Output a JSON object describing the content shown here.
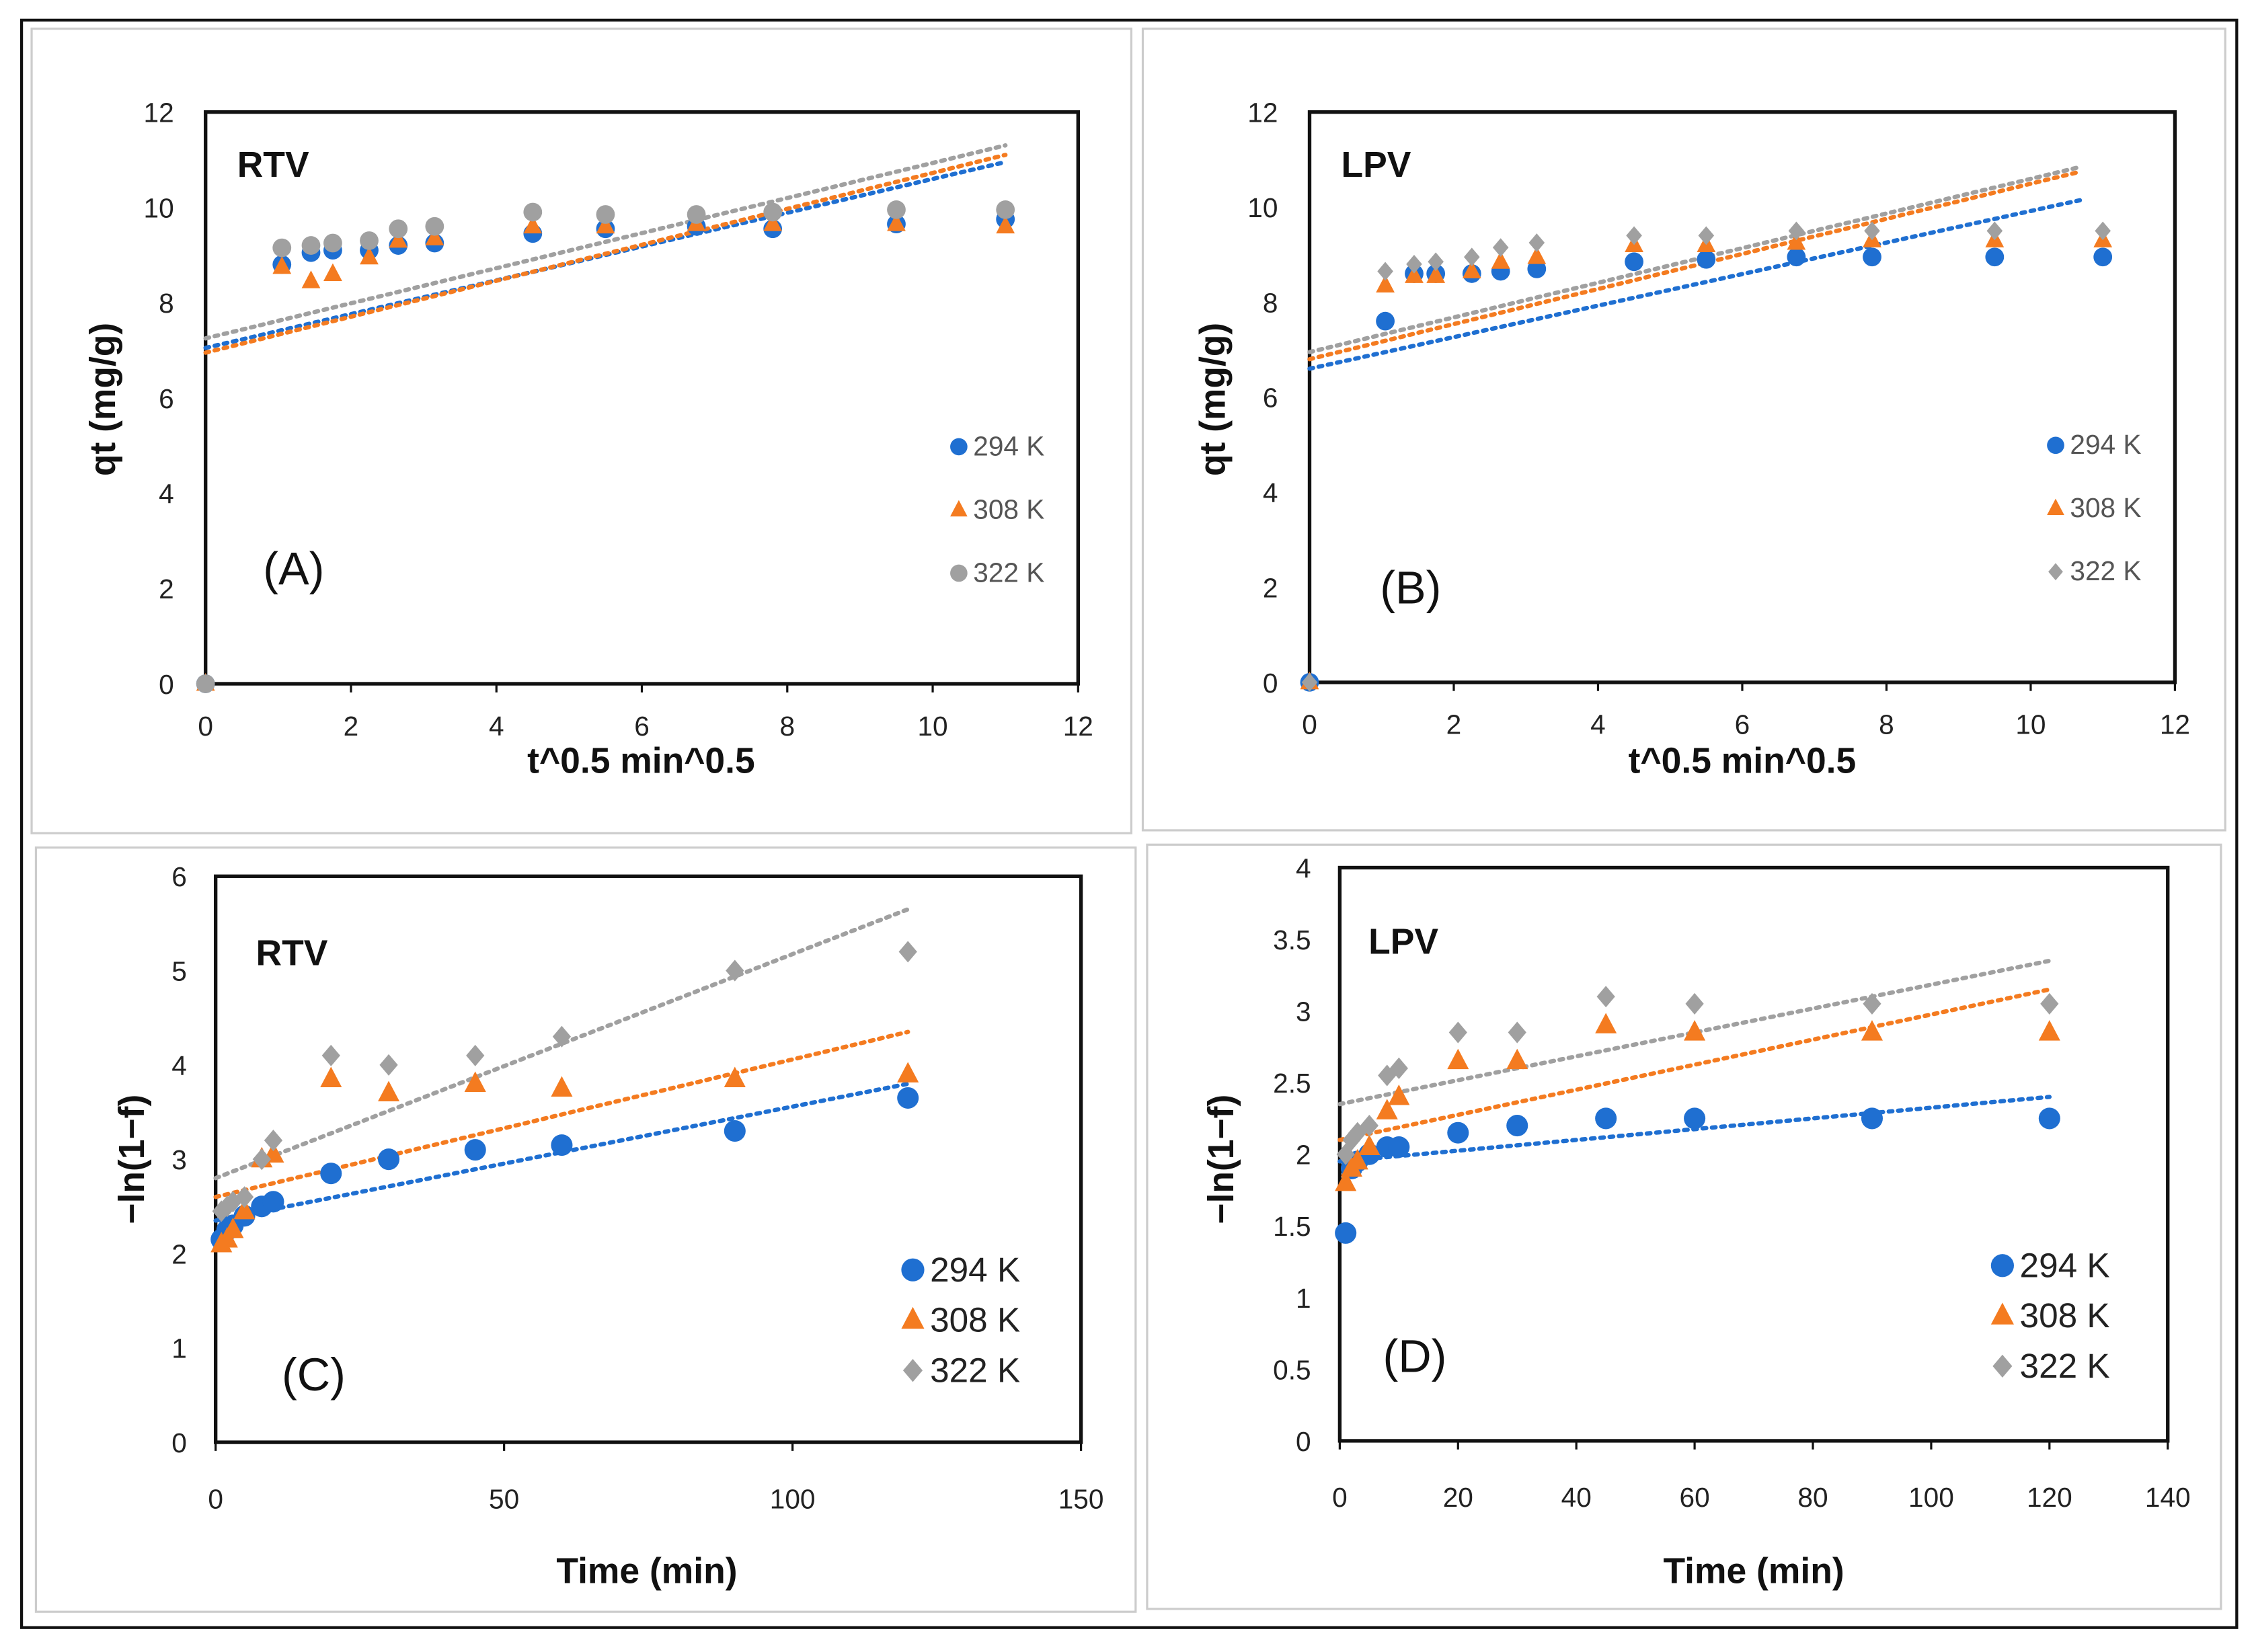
{
  "colors": {
    "294 K": "#1f6fd1",
    "308 K": "#f47b20",
    "322 K": "#a0a0a0"
  },
  "chart_data": [
    {
      "type": "scatter",
      "panel": "(A)",
      "tag": "RTV",
      "xlabel": "t^0.5 min^0.5",
      "ylabel": "qt (mg/g)",
      "xlim": [
        0,
        12
      ],
      "ylim": [
        0,
        12
      ],
      "xticks": [
        0,
        2,
        4,
        6,
        8,
        10,
        12
      ],
      "yticks": [
        0,
        2,
        4,
        6,
        8,
        10,
        12
      ],
      "legend": "right",
      "x": [
        0,
        1.05,
        1.45,
        1.75,
        2.25,
        2.65,
        3.15,
        4.5,
        5.5,
        6.75,
        7.8,
        9.5,
        11
      ],
      "series": [
        {
          "name": "294 K",
          "marker": "circle",
          "values": [
            0,
            8.8,
            9.05,
            9.1,
            9.1,
            9.2,
            9.25,
            9.45,
            9.55,
            9.6,
            9.55,
            9.65,
            9.75
          ],
          "trend": [
            [
              0,
              7.05
            ],
            [
              11,
              10.95
            ]
          ]
        },
        {
          "name": "308 K",
          "marker": "triangle",
          "values": [
            0,
            8.75,
            8.45,
            8.6,
            8.95,
            9.3,
            9.35,
            9.6,
            9.6,
            9.65,
            9.65,
            9.65,
            9.6
          ],
          "trend": [
            [
              0,
              6.95
            ],
            [
              11,
              11.1
            ]
          ]
        },
        {
          "name": "322 K",
          "marker": "circle",
          "values": [
            0,
            9.15,
            9.2,
            9.25,
            9.3,
            9.55,
            9.6,
            9.9,
            9.85,
            9.85,
            9.9,
            9.95,
            9.95
          ],
          "trend": [
            [
              0,
              7.25
            ],
            [
              11,
              11.3
            ]
          ]
        }
      ]
    },
    {
      "type": "scatter",
      "panel": "(B)",
      "tag": "LPV",
      "xlabel": "t^0.5 min^0.5",
      "ylabel": "qt (mg/g)",
      "xlim": [
        0,
        12
      ],
      "ylim": [
        0,
        12
      ],
      "xticks": [
        0,
        2,
        4,
        6,
        8,
        10,
        12
      ],
      "yticks": [
        0,
        2,
        4,
        6,
        8,
        10,
        12
      ],
      "legend": "right",
      "x": [
        0,
        1.05,
        1.45,
        1.75,
        2.25,
        2.65,
        3.15,
        4.5,
        5.5,
        6.75,
        7.8,
        9.5,
        11
      ],
      "series": [
        {
          "name": "294 K",
          "marker": "circle",
          "values": [
            0,
            7.6,
            8.6,
            8.6,
            8.6,
            8.65,
            8.7,
            8.85,
            8.9,
            8.95,
            8.95,
            8.95,
            8.95
          ],
          "trend": [
            [
              0,
              6.6
            ],
            [
              10.7,
              10.15
            ]
          ]
        },
        {
          "name": "308 K",
          "marker": "triangle",
          "values": [
            0,
            8.35,
            8.55,
            8.55,
            8.65,
            8.85,
            8.95,
            9.2,
            9.2,
            9.25,
            9.3,
            9.3,
            9.3
          ],
          "trend": [
            [
              0,
              6.8
            ],
            [
              10.7,
              10.75
            ]
          ]
        },
        {
          "name": "322 K",
          "marker": "diamond",
          "values": [
            0,
            8.65,
            8.8,
            8.85,
            8.95,
            9.15,
            9.25,
            9.4,
            9.4,
            9.5,
            9.5,
            9.5,
            9.5
          ],
          "trend": [
            [
              0,
              6.95
            ],
            [
              10.7,
              10.85
            ]
          ]
        }
      ]
    },
    {
      "type": "scatter",
      "panel": "(C)",
      "tag": "RTV",
      "xlabel": "Time (min)",
      "ylabel": "−ln(1−f)",
      "xlim": [
        0,
        150
      ],
      "ylim": [
        0,
        6
      ],
      "xticks": [
        0,
        50,
        100,
        150
      ],
      "yticks": [
        0,
        1,
        2,
        3,
        4,
        5,
        6
      ],
      "legend": "bottom-right",
      "x": [
        1,
        2,
        3,
        5,
        8,
        10,
        20,
        30,
        45,
        60,
        90,
        120
      ],
      "series": [
        {
          "name": "294 K",
          "marker": "circle",
          "values": [
            2.15,
            2.25,
            2.3,
            2.4,
            2.5,
            2.55,
            2.85,
            3.0,
            3.1,
            3.15,
            3.3,
            3.65
          ],
          "trend": [
            [
              0,
              2.35
            ],
            [
              120,
              3.8
            ]
          ]
        },
        {
          "name": "308 K",
          "marker": "triangle",
          "values": [
            2.1,
            2.15,
            2.25,
            2.45,
            3.0,
            3.05,
            3.85,
            3.7,
            3.8,
            3.75,
            3.85,
            3.9
          ],
          "trend": [
            [
              0,
              2.6
            ],
            [
              120,
              4.35
            ]
          ]
        },
        {
          "name": "322 K",
          "marker": "diamond",
          "values": [
            2.45,
            2.5,
            2.55,
            2.6,
            3.0,
            3.2,
            4.1,
            4.0,
            4.1,
            4.3,
            5.0,
            5.2
          ],
          "trend": [
            [
              0,
              2.8
            ],
            [
              120,
              5.65
            ]
          ]
        }
      ]
    },
    {
      "type": "scatter",
      "panel": "(D)",
      "tag": "LPV",
      "xlabel": "Time (min)",
      "ylabel": "−ln(1−f)",
      "xlim": [
        0,
        140
      ],
      "ylim": [
        0,
        4
      ],
      "xticks": [
        0,
        20,
        40,
        60,
        80,
        100,
        120,
        140
      ],
      "yticks": [
        0,
        0.5,
        1,
        1.5,
        2,
        2.5,
        3,
        3.5,
        4
      ],
      "legend": "bottom-right",
      "x": [
        1,
        2,
        3,
        5,
        8,
        10,
        20,
        30,
        45,
        60,
        90,
        120
      ],
      "series": [
        {
          "name": "294 K",
          "marker": "circle",
          "values": [
            1.45,
            1.9,
            1.95,
            2.0,
            2.05,
            2.05,
            2.15,
            2.2,
            2.25,
            2.25,
            2.25,
            2.25
          ],
          "trend": [
            [
              0,
              1.95
            ],
            [
              120,
              2.4
            ]
          ]
        },
        {
          "name": "308 K",
          "marker": "triangle",
          "values": [
            1.8,
            1.9,
            1.95,
            2.05,
            2.3,
            2.4,
            2.65,
            2.65,
            2.9,
            2.85,
            2.85,
            2.85
          ],
          "trend": [
            [
              0,
              2.1
            ],
            [
              120,
              3.15
            ]
          ]
        },
        {
          "name": "322 K",
          "marker": "diamond",
          "values": [
            2.0,
            2.1,
            2.15,
            2.2,
            2.55,
            2.6,
            2.85,
            2.85,
            3.1,
            3.05,
            3.05,
            3.05
          ],
          "trend": [
            [
              0,
              2.35
            ],
            [
              120,
              3.35
            ]
          ]
        }
      ]
    }
  ]
}
